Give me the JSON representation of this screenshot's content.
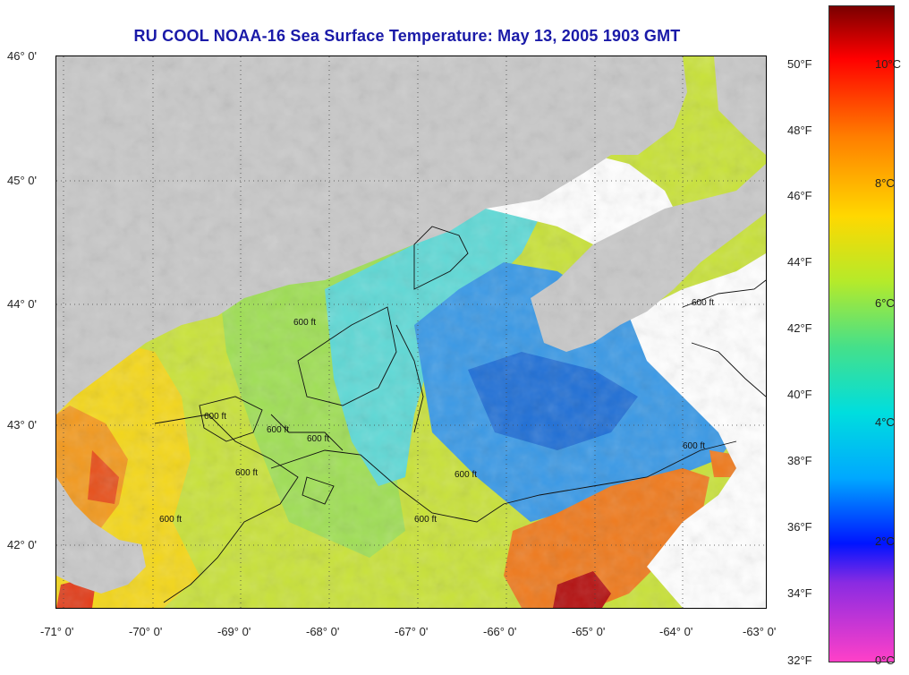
{
  "title": "RU COOL  NOAA-16  Sea Surface Temperature:  May 13, 2005 1903 GMT",
  "lat_labels": [
    "46° 0'",
    "45° 0'",
    "44° 0'",
    "43° 0'",
    "42° 0'"
  ],
  "lon_labels": [
    "-71° 0'",
    "-70° 0'",
    "-69° 0'",
    "-68° 0'",
    "-67° 0'",
    "-66° 0'",
    "-65° 0'",
    "-64° 0'",
    "-63° 0'"
  ],
  "colorbar": {
    "f_labels": [
      "50°F",
      "48°F",
      "46°F",
      "44°F",
      "42°F",
      "40°F",
      "38°F",
      "36°F",
      "34°F",
      "32°F"
    ],
    "c_labels": [
      "10°C",
      "8°C",
      "6°C",
      "4°C",
      "2°C",
      "0°C"
    ]
  },
  "contour_label": "600 ft",
  "colors": {
    "land": "#c8c8c8",
    "cloud": "#ffffff",
    "title": "#1a1aa8"
  }
}
